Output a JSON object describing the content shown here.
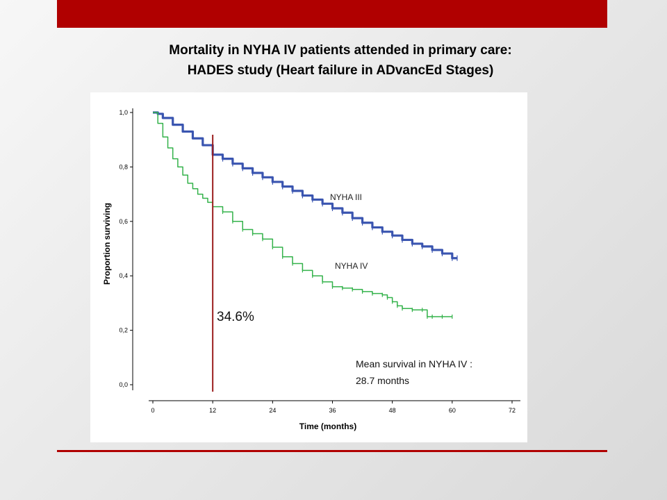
{
  "slide": {
    "title_line1": "Mortality in NYHA IV patients attended in primary care:",
    "title_line2": "HADES study (Heart failure in ADvancEd Stages)",
    "accent_color": "#b00000"
  },
  "chart_data": {
    "type": "line",
    "chart_kind": "kaplan-meier survival curve",
    "xlabel": "Time (months)",
    "ylabel": "Proportion surviving",
    "xlim": [
      0,
      72
    ],
    "ylim": [
      0,
      1.0
    ],
    "xticks": [
      "0",
      "12",
      "24",
      "36",
      "48",
      "60",
      "72"
    ],
    "yticks": [
      "0,0",
      "0,2",
      "0,4",
      "0,6",
      "0,8",
      "1,0"
    ],
    "grid": false,
    "series": [
      {
        "name": "NYHA III",
        "color": "#3a55b0",
        "x": [
          0,
          1,
          2,
          4,
          6,
          8,
          10,
          12,
          14,
          16,
          18,
          20,
          22,
          24,
          26,
          28,
          30,
          32,
          34,
          36,
          38,
          40,
          42,
          44,
          46,
          48,
          50,
          52,
          54,
          56,
          58,
          60,
          61
        ],
        "values": [
          1.0,
          0.995,
          0.98,
          0.955,
          0.93,
          0.905,
          0.88,
          0.845,
          0.83,
          0.812,
          0.795,
          0.778,
          0.762,
          0.745,
          0.728,
          0.712,
          0.695,
          0.68,
          0.665,
          0.648,
          0.632,
          0.612,
          0.595,
          0.578,
          0.562,
          0.548,
          0.532,
          0.518,
          0.508,
          0.495,
          0.482,
          0.465,
          0.465
        ]
      },
      {
        "name": "NYHA IV",
        "color": "#33b24a",
        "x": [
          0,
          1,
          2,
          3,
          4,
          5,
          6,
          7,
          8,
          9,
          10,
          11,
          12,
          14,
          16,
          18,
          20,
          22,
          24,
          26,
          28,
          30,
          32,
          34,
          36,
          38,
          40,
          42,
          44,
          46,
          47,
          48,
          49,
          50,
          52,
          54,
          55,
          56,
          58,
          60
        ],
        "values": [
          1.0,
          0.96,
          0.91,
          0.87,
          0.83,
          0.8,
          0.77,
          0.74,
          0.72,
          0.7,
          0.685,
          0.67,
          0.654,
          0.635,
          0.6,
          0.57,
          0.555,
          0.535,
          0.505,
          0.47,
          0.445,
          0.42,
          0.4,
          0.378,
          0.36,
          0.355,
          0.35,
          0.342,
          0.335,
          0.33,
          0.32,
          0.305,
          0.29,
          0.28,
          0.275,
          0.275,
          0.25,
          0.25,
          0.25,
          0.25
        ]
      }
    ],
    "annotations": {
      "vline_x": 12,
      "vline_color": "#9b1c1c",
      "marker_label": "34.6%",
      "mean_survival_line1": "Mean survival in   NYHA IV :",
      "mean_survival_line2": "28.7 months"
    }
  }
}
